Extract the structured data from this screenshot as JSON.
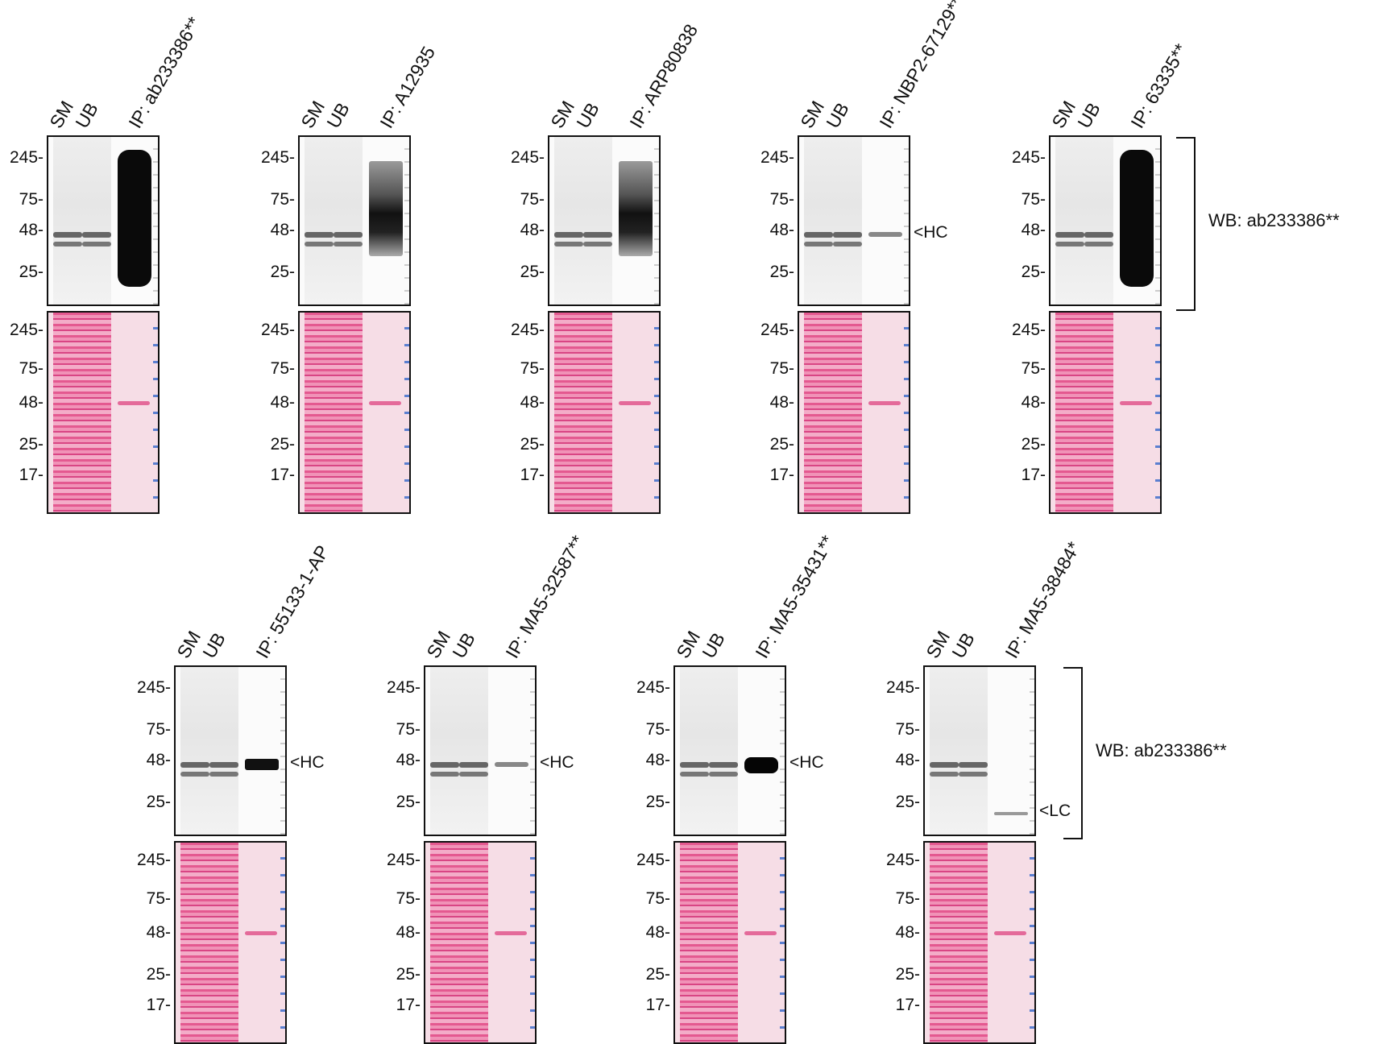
{
  "lanes_common": [
    "SM",
    "UB"
  ],
  "mw_wb": [
    "245-",
    "75-",
    "48-",
    "25-"
  ],
  "mw_stain": [
    "245-",
    "75-",
    "48-",
    "25-",
    "17-"
  ],
  "wb_label": "WB: ab233386**",
  "panels": [
    {
      "ip": "IP: ab233386**",
      "annotation": "",
      "ip_band": "strong"
    },
    {
      "ip": "IP: A12935",
      "annotation": "",
      "ip_band": "medium"
    },
    {
      "ip": "IP: ARP80838",
      "annotation": "",
      "ip_band": "medium"
    },
    {
      "ip": "IP: NBP2-67129**",
      "annotation": "HC",
      "ip_band": "weak"
    },
    {
      "ip": "IP: 63335**",
      "annotation": "",
      "ip_band": "strong"
    },
    {
      "ip": "IP: 55133-1-AP",
      "annotation": "HC",
      "ip_band": "hc"
    },
    {
      "ip": "IP: MA5-32587**",
      "annotation": "HC",
      "ip_band": "weak"
    },
    {
      "ip": "IP: MA5-35431**",
      "annotation": "HC",
      "ip_band": "hcstrong"
    },
    {
      "ip": "IP: MA5-38484*",
      "annotation": "LC",
      "ip_band": "lc"
    }
  ]
}
